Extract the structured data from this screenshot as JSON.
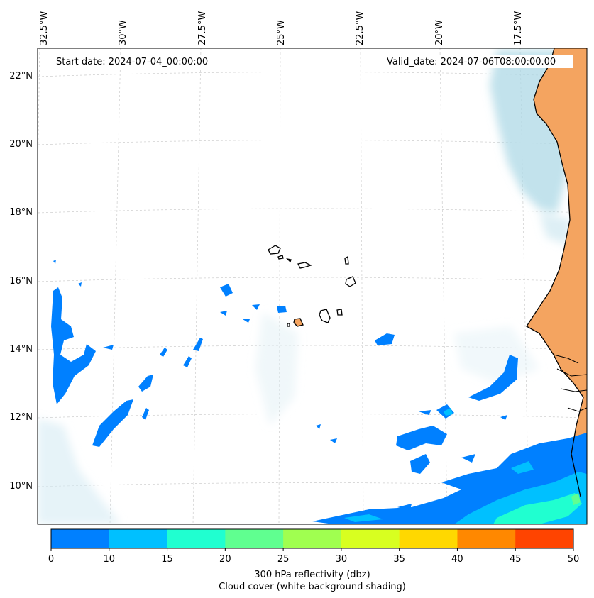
{
  "map": {
    "start_date": "Start date: 2024-07-04_00:00:00",
    "valid_date": "Valid_date: 2024-07-06T08:00:00.00",
    "lon_labels": [
      "32.5°W",
      "30°W",
      "27.5°W",
      "25°W",
      "22.5°W",
      "20°W",
      "17.5°W"
    ],
    "lat_labels": [
      "22°N",
      "20°N",
      "18°N",
      "16°N",
      "14°N",
      "12°N",
      "10°N"
    ]
  },
  "colorbar": {
    "ticks": [
      "0",
      "10",
      "15",
      "20",
      "25",
      "30",
      "35",
      "40",
      "45",
      "50"
    ],
    "colors": [
      "#0080ff",
      "#00c0ff",
      "#20ffd0",
      "#60ff90",
      "#a0ff50",
      "#d8ff20",
      "#ffd800",
      "#ff8800",
      "#ff4400"
    ],
    "label_line1": "300 hPa reflectivity (dbz)",
    "label_line2": "Cloud cover (white background shading)"
  },
  "palette": {
    "land": "#f4a460",
    "cloud": "#add8e6",
    "coast": "#000000"
  }
}
